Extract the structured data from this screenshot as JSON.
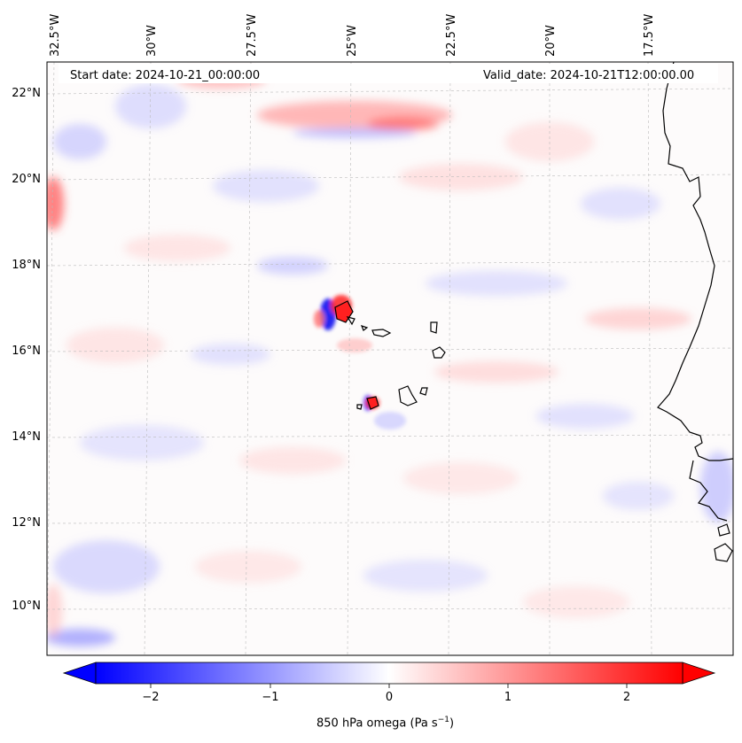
{
  "info": {
    "start_date": "Start date: 2024-10-21_00:00:00",
    "valid_date": "Valid_date: 2024-10-21T12:00:00.00"
  },
  "axes": {
    "lon_labels": [
      "32.5°W",
      "30°W",
      "27.5°W",
      "25°W",
      "22.5°W",
      "20°W",
      "17.5°W"
    ],
    "lat_labels": [
      "22°N",
      "20°N",
      "18°N",
      "16°N",
      "14°N",
      "12°N",
      "10°N"
    ]
  },
  "colorbar": {
    "tick_labels": [
      "−2",
      "−1",
      "0",
      "1",
      "2"
    ],
    "title": "850 hPa omega (Pa s",
    "title_exp": "−1",
    "title_close": ")",
    "range": [
      -2.6,
      2.6
    ],
    "colors": {
      "negative": "#0000ff",
      "zero": "#ffffff",
      "positive": "#ff0000"
    }
  },
  "features": {
    "coastline_color": "#000000",
    "gridline_color": "#bbbbbb"
  }
}
